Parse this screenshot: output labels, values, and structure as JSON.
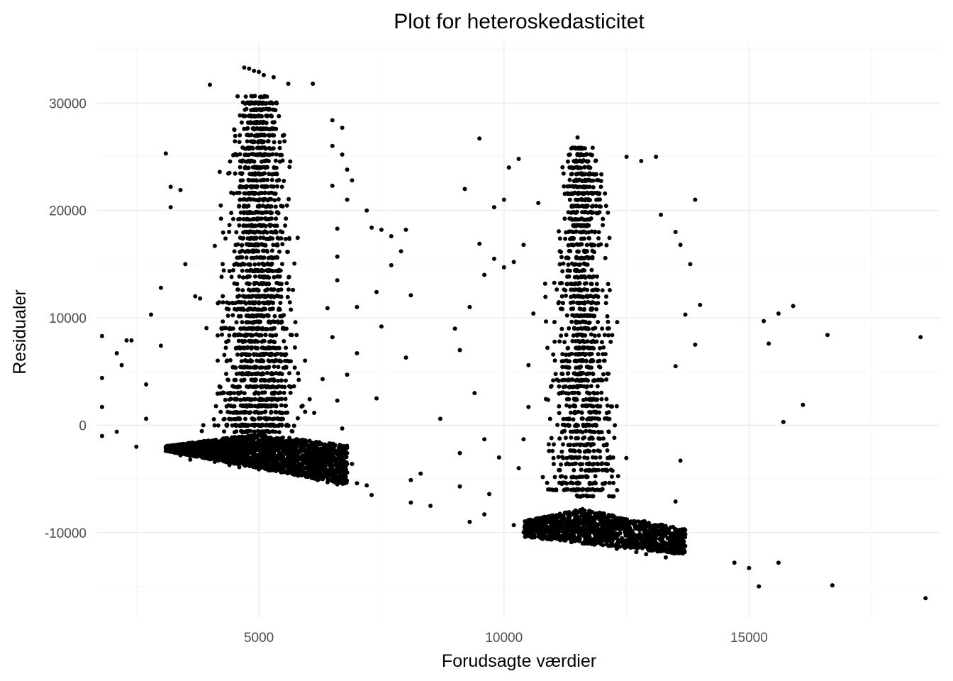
{
  "chart_data": {
    "type": "scatter",
    "title": "Plot for heteroskedasticitet",
    "xlabel": "Forudsagte værdier",
    "ylabel": "Residualer",
    "xlim": [
      1700,
      18900
    ],
    "ylim": [
      -18000,
      35500
    ],
    "x_ticks": [
      5000,
      10000,
      15000
    ],
    "y_ticks": [
      -10000,
      0,
      10000,
      20000,
      30000
    ],
    "x_tick_labels": [
      "5000",
      "10000",
      "15000"
    ],
    "y_tick_labels": [
      "-10000",
      "0",
      "10000",
      "20000",
      "30000"
    ],
    "grid": true,
    "legend": "none",
    "point_color": "#000000",
    "points": [
      [
        1800,
        8300
      ],
      [
        1800,
        4400
      ],
      [
        1800,
        1700
      ],
      [
        1800,
        -1000
      ],
      [
        2100,
        6700
      ],
      [
        2200,
        5600
      ],
      [
        2300,
        7900
      ],
      [
        2400,
        7900
      ],
      [
        2100,
        -600
      ],
      [
        2500,
        -2000
      ],
      [
        2700,
        600
      ],
      [
        2700,
        3800
      ],
      [
        2800,
        10300
      ],
      [
        3000,
        12800
      ],
      [
        3000,
        7400
      ],
      [
        3100,
        25300
      ],
      [
        3200,
        20300
      ],
      [
        3200,
        22200
      ],
      [
        3400,
        21900
      ],
      [
        3500,
        15000
      ],
      [
        3700,
        12000
      ],
      [
        3800,
        11800
      ],
      [
        4000,
        31700
      ],
      [
        4100,
        16700
      ],
      [
        4200,
        23600
      ],
      [
        4400,
        23500
      ],
      [
        4500,
        27500
      ],
      [
        6700,
        27700
      ],
      [
        6800,
        23800
      ],
      [
        6800,
        21000
      ],
      [
        6900,
        22800
      ],
      [
        7200,
        20000
      ],
      [
        7300,
        18400
      ],
      [
        7500,
        18200
      ],
      [
        7700,
        17600
      ],
      [
        7900,
        16200
      ],
      [
        7700,
        14900
      ],
      [
        7400,
        12400
      ],
      [
        7000,
        11000
      ],
      [
        7500,
        9200
      ],
      [
        7000,
        6700
      ],
      [
        6800,
        4700
      ],
      [
        7400,
        2500
      ],
      [
        8000,
        18200
      ],
      [
        8100,
        12100
      ],
      [
        8000,
        6300
      ],
      [
        8300,
        -4500
      ],
      [
        8100,
        -5100
      ],
      [
        8100,
        -7200
      ],
      [
        8500,
        -7500
      ],
      [
        8700,
        600
      ],
      [
        9000,
        9000
      ],
      [
        9100,
        7000
      ],
      [
        9100,
        -2600
      ],
      [
        9100,
        -5700
      ],
      [
        9200,
        22000
      ],
      [
        9300,
        11000
      ],
      [
        9300,
        -9000
      ],
      [
        9500,
        16900
      ],
      [
        9500,
        26700
      ],
      [
        9600,
        14000
      ],
      [
        9800,
        15500
      ],
      [
        9800,
        20300
      ],
      [
        10000,
        14700
      ],
      [
        10000,
        21000
      ],
      [
        10100,
        24000
      ],
      [
        10200,
        15200
      ],
      [
        10300,
        24800
      ],
      [
        10400,
        16800
      ],
      [
        10600,
        10400
      ],
      [
        10700,
        20700
      ],
      [
        10500,
        5600
      ],
      [
        10500,
        1700
      ],
      [
        10400,
        -1300
      ],
      [
        10300,
        -4000
      ],
      [
        9900,
        -3000
      ],
      [
        9700,
        -6400
      ],
      [
        9600,
        -8300
      ],
      [
        10200,
        -9300
      ],
      [
        9400,
        3000
      ],
      [
        9600,
        -1300
      ],
      [
        11500,
        26800
      ],
      [
        12500,
        25000
      ],
      [
        12800,
        24600
      ],
      [
        13100,
        25000
      ],
      [
        13200,
        19600
      ],
      [
        13500,
        18000
      ],
      [
        13600,
        16800
      ],
      [
        13800,
        15000
      ],
      [
        13900,
        21000
      ],
      [
        14000,
        11200
      ],
      [
        13700,
        10300
      ],
      [
        13900,
        7500
      ],
      [
        13500,
        5500
      ],
      [
        13600,
        -3300
      ],
      [
        13500,
        -7100
      ],
      [
        14700,
        -12800
      ],
      [
        15000,
        -13300
      ],
      [
        15200,
        -15000
      ],
      [
        15300,
        9700
      ],
      [
        15400,
        7600
      ],
      [
        15600,
        10400
      ],
      [
        15700,
        300
      ],
      [
        15600,
        -12800
      ],
      [
        15900,
        11100
      ],
      [
        16100,
        1900
      ],
      [
        16600,
        8400
      ],
      [
        16700,
        -14900
      ],
      [
        18500,
        8200
      ],
      [
        18600,
        -16100
      ],
      [
        4700,
        33300
      ],
      [
        4800,
        33200
      ],
      [
        4900,
        33000
      ],
      [
        5000,
        32900
      ],
      [
        5100,
        32600
      ],
      [
        5300,
        32400
      ],
      [
        5600,
        31800
      ],
      [
        6100,
        31800
      ],
      [
        6500,
        28400
      ],
      [
        6500,
        26000
      ],
      [
        6700,
        25200
      ],
      [
        6500,
        22300
      ],
      [
        6600,
        18300
      ],
      [
        6600,
        15700
      ],
      [
        6600,
        13500
      ],
      [
        6400,
        10900
      ],
      [
        6500,
        8200
      ],
      [
        6300,
        4300
      ],
      [
        6600,
        2300
      ],
      [
        6700,
        -300
      ],
      [
        6900,
        -3600
      ],
      [
        6700,
        -5400
      ],
      [
        7200,
        -5600
      ],
      [
        7300,
        -6500
      ],
      [
        7000,
        -5400
      ],
      [
        6800,
        -4400
      ],
      [
        3500,
        -2100
      ],
      [
        3800,
        -1700
      ],
      [
        3300,
        -2500
      ],
      [
        3600,
        -3200
      ],
      [
        3400,
        -2800
      ],
      [
        3900,
        -3000
      ],
      [
        4100,
        -3400
      ],
      [
        4200,
        -2300
      ],
      [
        4400,
        -3700
      ],
      [
        4600,
        -3900
      ],
      [
        4800,
        -3100
      ],
      [
        5000,
        -4100
      ],
      [
        5200,
        -4200
      ],
      [
        5400,
        -3700
      ],
      [
        5600,
        -4400
      ],
      [
        5800,
        -4700
      ],
      [
        6000,
        -4500
      ],
      [
        6200,
        -5100
      ],
      [
        6400,
        -5300
      ],
      [
        6600,
        -5500
      ],
      [
        4300,
        -1800
      ],
      [
        4700,
        -2600
      ],
      [
        5100,
        -3000
      ],
      [
        5500,
        -2400
      ],
      [
        5900,
        -3000
      ],
      [
        6300,
        -4000
      ],
      [
        4900,
        -1900
      ],
      [
        5300,
        -1800
      ],
      [
        3700,
        -2200
      ],
      [
        4000,
        -2800
      ],
      [
        10700,
        -10100
      ],
      [
        10900,
        -10600
      ],
      [
        11100,
        -10300
      ],
      [
        11300,
        -9900
      ],
      [
        11500,
        -10700
      ],
      [
        11700,
        -11000
      ],
      [
        11900,
        -10400
      ],
      [
        12100,
        -11100
      ],
      [
        12300,
        -11500
      ],
      [
        12500,
        -11000
      ],
      [
        12700,
        -11800
      ],
      [
        12900,
        -12000
      ],
      [
        13100,
        -11400
      ],
      [
        13300,
        -12300
      ],
      [
        13500,
        -11800
      ],
      [
        11000,
        -9200
      ],
      [
        11400,
        -9000
      ],
      [
        11800,
        -9400
      ],
      [
        12200,
        -9700
      ],
      [
        12600,
        -10300
      ],
      [
        13000,
        -10700
      ],
      [
        13400,
        -11000
      ],
      [
        11600,
        -8400
      ],
      [
        12000,
        -8700
      ],
      [
        12400,
        -9100
      ]
    ]
  }
}
